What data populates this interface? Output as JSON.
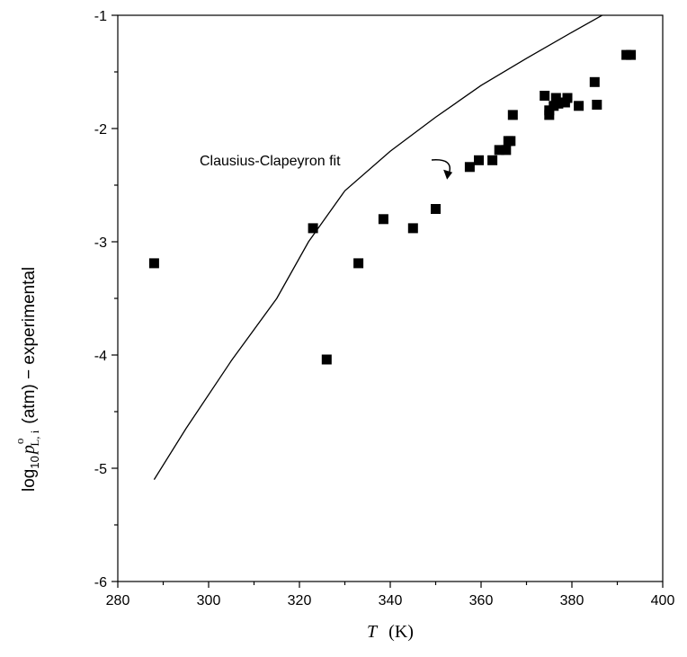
{
  "chart_data": {
    "type": "scatter",
    "x_label": {
      "symbol": "T",
      "unit": "(K)"
    },
    "y_label": {
      "prefix": "log",
      "prefix_sub": "10",
      "var": "p",
      "var_sup": "o",
      "var_sub": "L, i",
      "suffix": "(atm) − experimental"
    },
    "xlim": [
      280,
      400
    ],
    "ylim": [
      -6,
      -1
    ],
    "x_ticks": [
      280,
      300,
      320,
      340,
      360,
      380,
      400
    ],
    "y_ticks": [
      -1,
      -2,
      -3,
      -4,
      -5,
      -6
    ],
    "x_minor_step": 10,
    "y_minor_step": 0.5,
    "grid": false,
    "series": [
      {
        "kind": "scatter",
        "marker": "square",
        "points": [
          [
            288,
            -3.19
          ],
          [
            323,
            -2.88
          ],
          [
            326,
            -4.04
          ],
          [
            333,
            -3.19
          ],
          [
            338.5,
            -2.8
          ],
          [
            345,
            -2.88
          ],
          [
            350,
            -2.71
          ],
          [
            357.5,
            -2.34
          ],
          [
            359.5,
            -2.28
          ],
          [
            362.5,
            -2.28
          ],
          [
            364,
            -2.19
          ],
          [
            365.5,
            -2.19
          ],
          [
            366,
            -2.11
          ],
          [
            366.5,
            -2.11
          ],
          [
            367,
            -1.88
          ],
          [
            374,
            -1.71
          ],
          [
            375,
            -1.84
          ],
          [
            375,
            -1.88
          ],
          [
            376,
            -1.8
          ],
          [
            376.5,
            -1.73
          ],
          [
            377,
            -1.78
          ],
          [
            378.5,
            -1.77
          ],
          [
            379,
            -1.73
          ],
          [
            381.5,
            -1.8
          ],
          [
            385,
            -1.59
          ],
          [
            385.5,
            -1.79
          ],
          [
            392,
            -1.35
          ],
          [
            393,
            -1.35
          ]
        ]
      },
      {
        "kind": "line",
        "name": "Clausius-Clapeyron fit",
        "points": [
          [
            288,
            -5.1
          ],
          [
            295,
            -4.65
          ],
          [
            305,
            -4.05
          ],
          [
            315,
            -3.5
          ],
          [
            322,
            -3.0
          ],
          [
            330,
            -2.55
          ],
          [
            340,
            -2.2
          ],
          [
            350,
            -1.9
          ],
          [
            360,
            -1.62
          ],
          [
            370,
            -1.38
          ],
          [
            380,
            -1.15
          ],
          [
            392,
            -0.88
          ]
        ]
      }
    ],
    "annotation": {
      "text": "Clausius-Clapeyron fit",
      "arrow_to": [
        352.5,
        -2.45
      ]
    }
  }
}
